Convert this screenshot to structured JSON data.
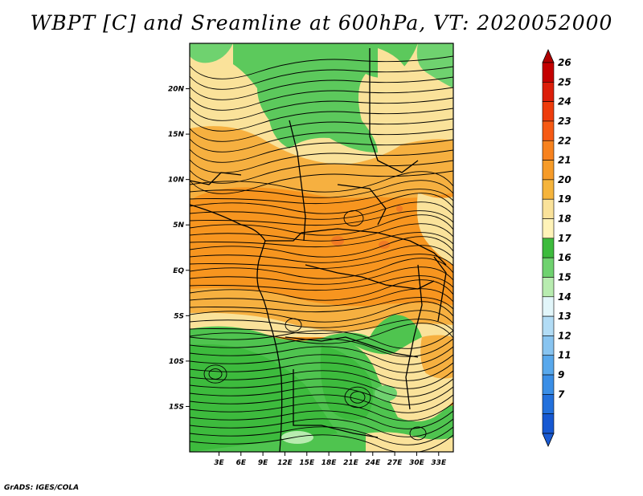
{
  "title": "WBPT [C] and Sreamline at 600hPa, VT: 2020052000",
  "credit": "GrADS: IGES/COLA",
  "map": {
    "lon_range": [
      -1,
      35
    ],
    "lat_range": [
      -20,
      25
    ],
    "lat_ticks": [
      {
        "value": 20,
        "label": "20N"
      },
      {
        "value": 15,
        "label": "15N"
      },
      {
        "value": 10,
        "label": "10N"
      },
      {
        "value": 5,
        "label": "5N"
      },
      {
        "value": 0,
        "label": "EQ"
      },
      {
        "value": -5,
        "label": "5S"
      },
      {
        "value": -10,
        "label": "10S"
      },
      {
        "value": -15,
        "label": "15S"
      }
    ],
    "lon_ticks": [
      {
        "value": 3,
        "label": "3E"
      },
      {
        "value": 6,
        "label": "6E"
      },
      {
        "value": 9,
        "label": "9E"
      },
      {
        "value": 12,
        "label": "12E"
      },
      {
        "value": 15,
        "label": "15E"
      },
      {
        "value": 18,
        "label": "18E"
      },
      {
        "value": 21,
        "label": "21E"
      },
      {
        "value": 24,
        "label": "24E"
      },
      {
        "value": 27,
        "label": "27E"
      },
      {
        "value": 30,
        "label": "30E"
      },
      {
        "value": 33,
        "label": "33E"
      }
    ]
  },
  "colorbar": {
    "labels": [
      "26",
      "25",
      "24",
      "23",
      "22",
      "21",
      "20",
      "19",
      "18",
      "17",
      "16",
      "15",
      "14",
      "13",
      "12",
      "11",
      "9",
      "7"
    ],
    "colors": [
      "#c40000",
      "#dc1e0a",
      "#ee3c0c",
      "#f65a14",
      "#f7821e",
      "#f69b28",
      "#f5b43c",
      "#fae29a",
      "#fff3b8",
      "#3dbb3d",
      "#6fd26f",
      "#b8ecb0",
      "#e2f6fa",
      "#b2dcf5",
      "#88c4f0",
      "#58a8ec",
      "#3a8ee6",
      "#2270dc",
      "#1658d2"
    ],
    "top_color": "#b00000",
    "bottom_color": "#1a5ad2"
  }
}
